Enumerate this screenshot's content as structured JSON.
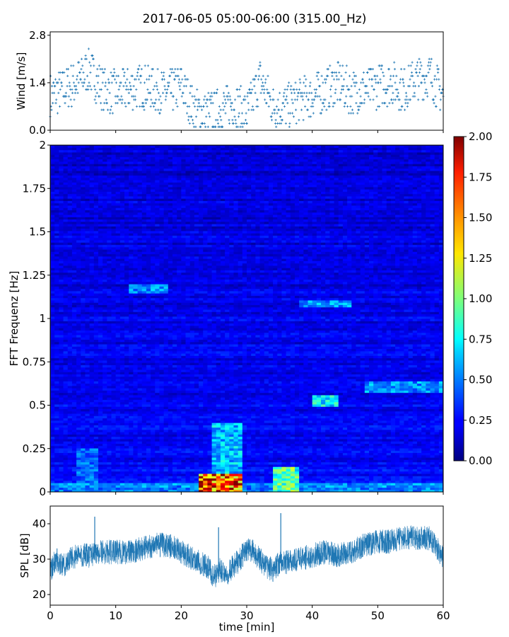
{
  "figure": {
    "title": "2017-06-05 05:00-06:00 (315.00_Hz)"
  },
  "chart_data": [
    {
      "type": "scatter",
      "panel": "wind",
      "ylabel": "Wind [m/s]",
      "xlim": [
        0,
        60
      ],
      "ylim": [
        0,
        2.9
      ],
      "yticks": [
        "0.0",
        "1.4",
        "2.8"
      ],
      "ytick_values": [
        0.0,
        1.4,
        2.8
      ],
      "marker": "+",
      "color": "#1f77b4",
      "series": [
        {
          "x": [
            0,
            2,
            4,
            6,
            8,
            10,
            12,
            14,
            16,
            18,
            20,
            22,
            24,
            26,
            28,
            30,
            32,
            34,
            36,
            38,
            40,
            42,
            44,
            46,
            48,
            50,
            52,
            54,
            56,
            58,
            60
          ],
          "y": [
            1.0,
            1.2,
            1.4,
            1.8,
            1.2,
            1.1,
            1.2,
            1.3,
            1.2,
            1.1,
            1.3,
            0.6,
            0.5,
            0.6,
            0.8,
            0.5,
            1.5,
            0.7,
            0.7,
            0.9,
            1.0,
            1.2,
            1.4,
            1.1,
            1.2,
            1.3,
            1.4,
            1.2,
            1.5,
            1.6,
            1.0
          ]
        }
      ]
    },
    {
      "type": "heatmap",
      "panel": "spectrogram",
      "ylabel": "FFT Frequenz [Hz]",
      "xlim": [
        0,
        60
      ],
      "ylim": [
        0,
        2
      ],
      "yticks": [
        "0",
        "0.25",
        "0.5",
        "0.75",
        "1",
        "1.25",
        "1.5",
        "1.75",
        "2"
      ],
      "ytick_values": [
        0,
        0.25,
        0.5,
        0.75,
        1,
        1.25,
        1.5,
        1.75,
        2
      ],
      "colormap": "jet",
      "colorbar": {
        "range": [
          0.0,
          2.0
        ],
        "ticks": [
          "0.00",
          "0.25",
          "0.50",
          "0.75",
          "1.00",
          "1.25",
          "1.50",
          "1.75",
          "2.00"
        ],
        "tick_values": [
          0,
          0.25,
          0.5,
          0.75,
          1.0,
          1.25,
          1.5,
          1.75,
          2.0
        ]
      },
      "features": [
        {
          "x_range": [
            23,
            29
          ],
          "f_range": [
            0,
            0.1
          ],
          "value": 1.8
        },
        {
          "x_range": [
            25,
            29
          ],
          "f_range": [
            0,
            0.4
          ],
          "value": 0.7
        },
        {
          "x_range": [
            34,
            38
          ],
          "f_range": [
            0,
            0.15
          ],
          "value": 1.0
        },
        {
          "x_range": [
            4,
            7
          ],
          "f_range": [
            0,
            0.25
          ],
          "value": 0.5
        },
        {
          "x_range": [
            40,
            44
          ],
          "f_range": [
            0.5,
            0.56
          ],
          "value": 0.8
        },
        {
          "x_range": [
            48,
            60
          ],
          "f_range": [
            0.58,
            0.64
          ],
          "value": 0.6
        },
        {
          "x_range": [
            12,
            18
          ],
          "f_range": [
            1.15,
            1.2
          ],
          "value": 0.6
        },
        {
          "x_range": [
            38,
            46
          ],
          "f_range": [
            1.07,
            1.11
          ],
          "value": 0.6
        }
      ]
    },
    {
      "type": "line",
      "panel": "spl",
      "ylabel": "SPL [dB]",
      "xlabel": "time [min]",
      "xlim": [
        0,
        60
      ],
      "ylim": [
        17,
        45
      ],
      "xticks": [
        "0",
        "10",
        "20",
        "30",
        "40",
        "50",
        "60"
      ],
      "xtick_values": [
        0,
        10,
        20,
        30,
        40,
        50,
        60
      ],
      "yticks": [
        "20",
        "30",
        "40"
      ],
      "ytick_values": [
        20,
        30,
        40
      ],
      "color": "#1f77b4",
      "series": [
        {
          "x": [
            0,
            1,
            2,
            3,
            4,
            5,
            6,
            7,
            8,
            10,
            12,
            14,
            16,
            18,
            20,
            22,
            24,
            25,
            26,
            27,
            28,
            29,
            30,
            31,
            32,
            33,
            34,
            35,
            36,
            38,
            40,
            42,
            44,
            46,
            48,
            50,
            52,
            54,
            56,
            58,
            59,
            60
          ],
          "y": [
            27,
            30,
            28,
            30,
            31,
            31,
            31,
            32,
            32,
            32,
            32,
            33,
            34,
            34,
            32,
            30,
            28,
            25,
            27,
            26,
            28,
            30,
            33,
            32,
            30,
            28,
            27,
            29,
            29,
            30,
            31,
            32,
            31,
            32,
            34,
            35,
            35,
            36,
            36,
            36,
            33,
            30
          ]
        }
      ],
      "annotations": [
        {
          "x": 6.8,
          "y": 42
        },
        {
          "x": 25.7,
          "y": 39
        },
        {
          "x": 35.2,
          "y": 43
        }
      ]
    }
  ]
}
